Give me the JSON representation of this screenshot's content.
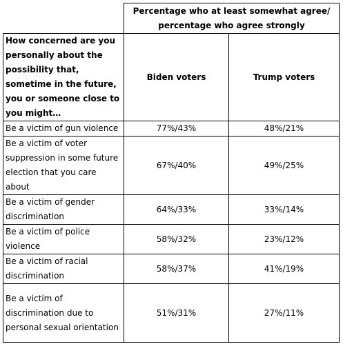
{
  "table": {
    "group_header": "Percentage who at least somewhat agree/ percentage who agree strongly",
    "question": "How concerned are you personally about the possibility that, sometime in the future, you or someone close to you might…",
    "columns": [
      "Biden voters",
      "Trump voters"
    ],
    "rows": [
      {
        "label": "Be a victim of gun violence",
        "biden": "77%/43%",
        "trump": "48%/21%"
      },
      {
        "label": "Be a victim of voter suppression in some future election that you care about",
        "biden": "67%/40%",
        "trump": "49%/25%"
      },
      {
        "label": "Be a victim of gender discrimination",
        "biden": "64%/33%",
        "trump": "33%/14%"
      },
      {
        "label": "Be a victim of police violence",
        "biden": "58%/32%",
        "trump": "23%/12%"
      },
      {
        "label": "Be a victim of racial discrimination",
        "biden": "58%/37%",
        "trump": "41%/19%"
      },
      {
        "label": "Be a victim of discrimination due to personal sexual orientation",
        "biden": "51%/31%",
        "trump": "27%/11%"
      }
    ]
  }
}
